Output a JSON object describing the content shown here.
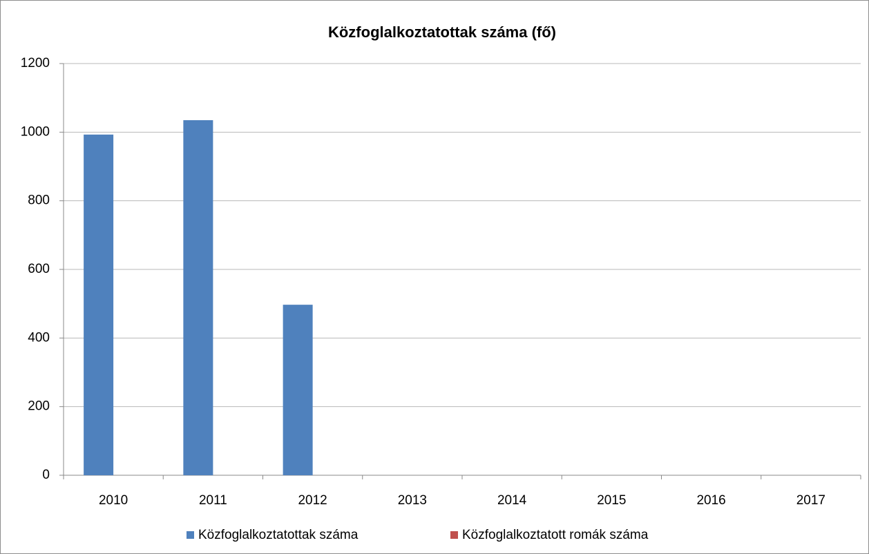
{
  "chart_data": {
    "type": "bar",
    "title": "Közfoglalkoztatottak száma (fő)",
    "categories": [
      "2010",
      "2011",
      "2012",
      "2013",
      "2014",
      "2015",
      "2016",
      "2017"
    ],
    "series": [
      {
        "name": "Közfoglalkoztatottak száma",
        "color": "#4f81bd",
        "values": [
          993,
          1035,
          497,
          null,
          null,
          null,
          null,
          null
        ]
      },
      {
        "name": "Közfoglalkoztatott romák száma",
        "color": "#c0504d",
        "values": [
          null,
          null,
          null,
          null,
          null,
          null,
          null,
          null
        ]
      }
    ],
    "ylim": [
      0,
      1200
    ],
    "yticks": [
      0,
      200,
      400,
      600,
      800,
      1000,
      1200
    ],
    "grid": true,
    "legend": "bottom"
  }
}
